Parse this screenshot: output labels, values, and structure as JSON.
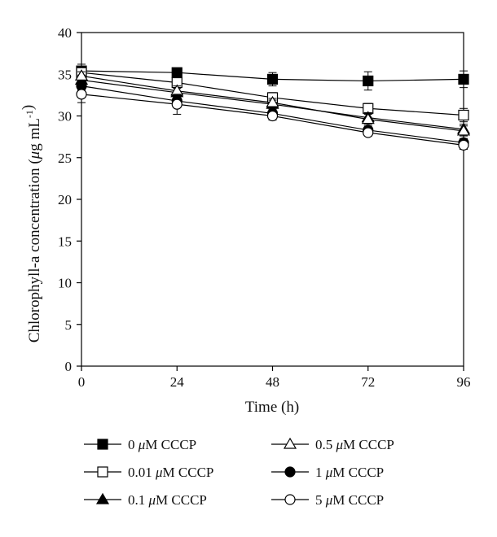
{
  "chart_data": {
    "type": "line",
    "xlabel": "Time (h)",
    "ylabel": "Chlorophyll-a concentration (μg mL⁻¹)",
    "xlim": [
      0,
      96
    ],
    "ylim": [
      0,
      40
    ],
    "xticks": [
      "0",
      "24",
      "48",
      "72",
      "96"
    ],
    "yticks": [
      "0",
      "5",
      "10",
      "15",
      "20",
      "25",
      "30",
      "35",
      "40"
    ],
    "grid": false,
    "legend_position": "bottom",
    "series": [
      {
        "name": "0 μM CCCP",
        "marker": "square",
        "fill": "filled",
        "x": [
          0,
          24,
          48,
          72,
          96
        ],
        "y": [
          35.4,
          35.2,
          34.4,
          34.2,
          34.4
        ],
        "err": [
          0.8,
          0.5,
          0.8,
          1.1,
          1.0
        ]
      },
      {
        "name": "0.01 μM CCCP",
        "marker": "square",
        "fill": "open",
        "x": [
          0,
          24,
          48,
          72,
          96
        ],
        "y": [
          35.2,
          34.0,
          32.2,
          30.9,
          30.1
        ],
        "err": [
          0.6,
          0.7,
          0.6,
          0.6,
          0.8
        ]
      },
      {
        "name": "0.1 μM CCCP",
        "marker": "triangle",
        "fill": "filled",
        "x": [
          0,
          24,
          48,
          72,
          96
        ],
        "y": [
          34.3,
          32.8,
          31.4,
          29.8,
          28.4
        ],
        "err": [
          0.6,
          0.6,
          0.5,
          0.6,
          0.6
        ]
      },
      {
        "name": "0.5 μM CCCP",
        "marker": "triangle",
        "fill": "open",
        "x": [
          0,
          24,
          48,
          72,
          96
        ],
        "y": [
          34.8,
          33.0,
          31.6,
          29.6,
          28.2
        ],
        "err": [
          0.5,
          0.6,
          0.5,
          0.6,
          0.6
        ]
      },
      {
        "name": "1 μM CCCP",
        "marker": "circle",
        "fill": "filled",
        "x": [
          0,
          24,
          48,
          72,
          96
        ],
        "y": [
          33.6,
          31.8,
          30.3,
          28.3,
          26.8
        ],
        "err": [
          0.5,
          0.6,
          0.5,
          0.5,
          0.5
        ]
      },
      {
        "name": "5 μM CCCP",
        "marker": "circle",
        "fill": "open",
        "x": [
          0,
          24,
          48,
          72,
          96
        ],
        "y": [
          32.6,
          31.4,
          30.0,
          28.0,
          26.5
        ],
        "err": [
          1.0,
          1.2,
          0.5,
          0.4,
          0.5
        ]
      }
    ]
  }
}
